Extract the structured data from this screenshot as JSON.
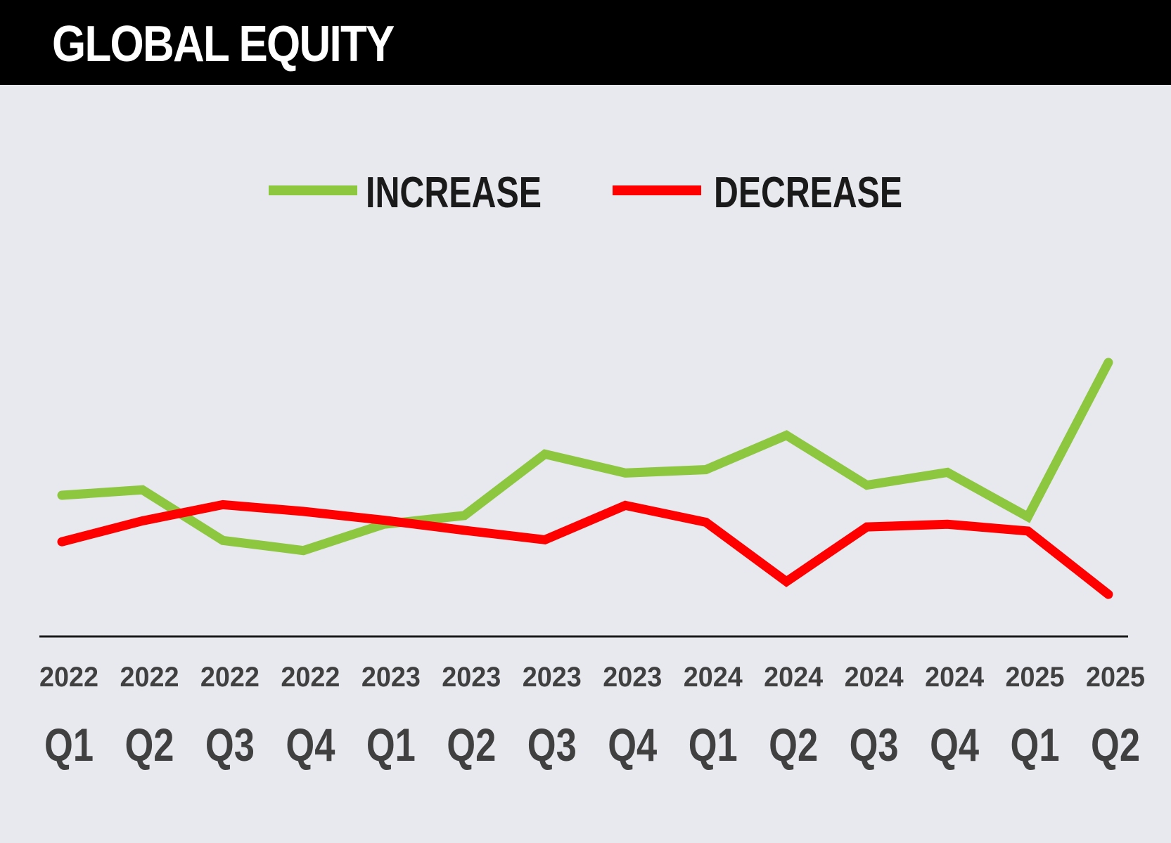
{
  "header": {
    "title": "GLOBAL EQUITY"
  },
  "chart_data": {
    "type": "line",
    "title": "GLOBAL EQUITY",
    "xlabel": "",
    "ylabel": "",
    "grid": false,
    "legend_position": "top-center",
    "categories": [
      {
        "year": "2022",
        "quarter": "Q1"
      },
      {
        "year": "2022",
        "quarter": "Q2"
      },
      {
        "year": "2022",
        "quarter": "Q3"
      },
      {
        "year": "2022",
        "quarter": "Q4"
      },
      {
        "year": "2023",
        "quarter": "Q1"
      },
      {
        "year": "2023",
        "quarter": "Q2"
      },
      {
        "year": "2023",
        "quarter": "Q3"
      },
      {
        "year": "2023",
        "quarter": "Q4"
      },
      {
        "year": "2024",
        "quarter": "Q1"
      },
      {
        "year": "2024",
        "quarter": "Q2"
      },
      {
        "year": "2024",
        "quarter": "Q3"
      },
      {
        "year": "2024",
        "quarter": "Q4"
      },
      {
        "year": "2025",
        "quarter": "Q1"
      },
      {
        "year": "2025",
        "quarter": "Q2"
      }
    ],
    "ylim": [
      0,
      100
    ],
    "series": [
      {
        "name": "INCREASE",
        "color": "#8dc63f",
        "values": [
          47.5,
          48.3,
          40.8,
          39.3,
          43.2,
          44.5,
          53.6,
          50.8,
          51.3,
          56.4,
          49.0,
          50.9,
          44.3,
          67.2
        ]
      },
      {
        "name": "DECREASE",
        "color": "#ff0000",
        "values": [
          40.6,
          43.7,
          46.1,
          45.1,
          43.8,
          42.3,
          40.9,
          46.0,
          43.5,
          34.7,
          42.8,
          43.2,
          42.2,
          32.8
        ]
      }
    ]
  }
}
